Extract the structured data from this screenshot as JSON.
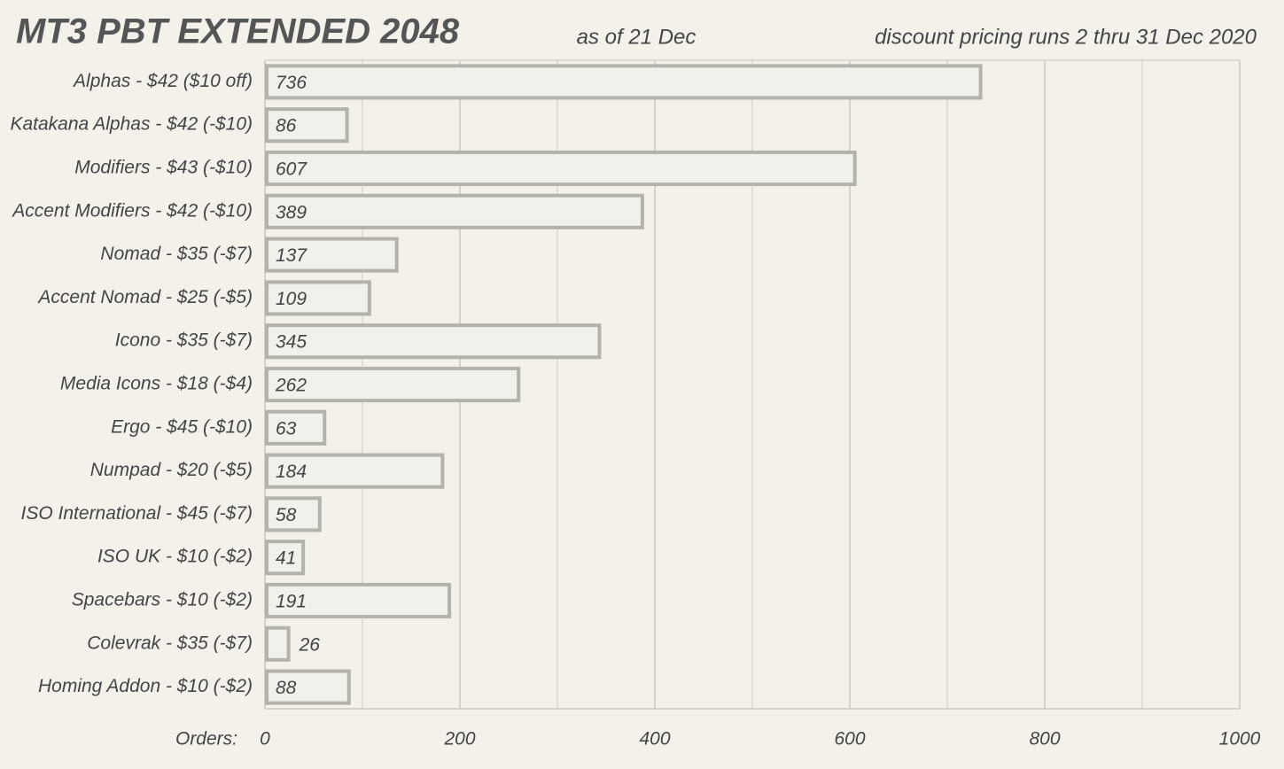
{
  "chart_data": {
    "type": "hbar",
    "title": "MT3 PBT EXTENDED 2048",
    "subtitle": "as of  21 Dec",
    "note": "discount pricing runs 2 thru 31 Dec 2020",
    "xlabel": "Orders:",
    "categories": [
      "Alphas - $42  ($10 off)",
      "Katakana Alphas - $42  (-$10)",
      "Modifiers - $43  (-$10)",
      "Accent Modifiers - $42  (-$10)",
      "Nomad - $35  (-$7)",
      "Accent Nomad - $25  (-$5)",
      "Icono - $35  (-$7)",
      "Media Icons - $18  (-$4)",
      "Ergo - $45  (-$10)",
      "Numpad - $20  (-$5)",
      "ISO International - $45  (-$7)",
      "ISO UK - $10  (-$2)",
      "Spacebars - $10  (-$2)",
      "Colevrak - $35  (-$7)",
      "Homing Addon - $10  (-$2)"
    ],
    "values": [
      736,
      86,
      607,
      389,
      137,
      109,
      345,
      262,
      63,
      184,
      58,
      41,
      191,
      26,
      88
    ],
    "color": "#f1f0eb",
    "edge_color": "#b3b2ab",
    "xlim": [
      0,
      1000
    ],
    "xticks": [
      0,
      200,
      400,
      600,
      800,
      1000
    ],
    "minor_xticks": [
      100,
      300,
      500,
      700,
      900
    ],
    "grid": true
  }
}
